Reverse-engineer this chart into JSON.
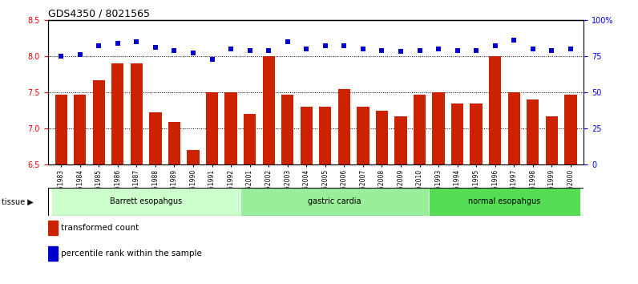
{
  "title": "GDS4350 / 8021565",
  "samples": [
    "GSM851983",
    "GSM851984",
    "GSM851985",
    "GSM851986",
    "GSM851987",
    "GSM851988",
    "GSM851989",
    "GSM851990",
    "GSM851991",
    "GSM851992",
    "GSM852001",
    "GSM852002",
    "GSM852003",
    "GSM852004",
    "GSM852005",
    "GSM852006",
    "GSM852007",
    "GSM852008",
    "GSM852009",
    "GSM852010",
    "GSM851993",
    "GSM851994",
    "GSM851995",
    "GSM851996",
    "GSM851997",
    "GSM851998",
    "GSM851999",
    "GSM852000"
  ],
  "bar_values": [
    7.47,
    7.47,
    7.67,
    7.9,
    7.9,
    7.22,
    7.09,
    6.7,
    7.5,
    7.5,
    7.2,
    8.0,
    7.47,
    7.3,
    7.3,
    7.55,
    7.3,
    7.25,
    7.17,
    7.47,
    7.5,
    7.35,
    7.35,
    8.0,
    7.5,
    7.4,
    7.17,
    7.47
  ],
  "percentile_values": [
    75,
    76,
    82,
    84,
    85,
    81,
    79,
    77,
    73,
    80,
    79,
    79,
    85,
    80,
    82,
    82,
    80,
    79,
    78,
    79,
    80,
    79,
    79,
    82,
    86,
    80,
    79,
    80
  ],
  "groups": [
    {
      "label": "Barrett esopahgus",
      "start": 0,
      "end": 9,
      "color": "#ccffcc"
    },
    {
      "label": "gastric cardia",
      "start": 10,
      "end": 19,
      "color": "#99ee99"
    },
    {
      "label": "normal esopahgus",
      "start": 20,
      "end": 27,
      "color": "#55dd55"
    }
  ],
  "bar_color": "#cc2200",
  "dot_color": "#0000cc",
  "ylim_left": [
    6.5,
    8.5
  ],
  "ylim_right": [
    0,
    100
  ],
  "yticks_left": [
    6.5,
    7.0,
    7.5,
    8.0,
    8.5
  ],
  "yticks_right": [
    0,
    25,
    50,
    75,
    100
  ],
  "ytick_labels_right": [
    "0",
    "25",
    "50",
    "75",
    "100%"
  ],
  "grid_values": [
    7.0,
    7.5,
    8.0
  ],
  "plot_bg_color": "#ffffff"
}
